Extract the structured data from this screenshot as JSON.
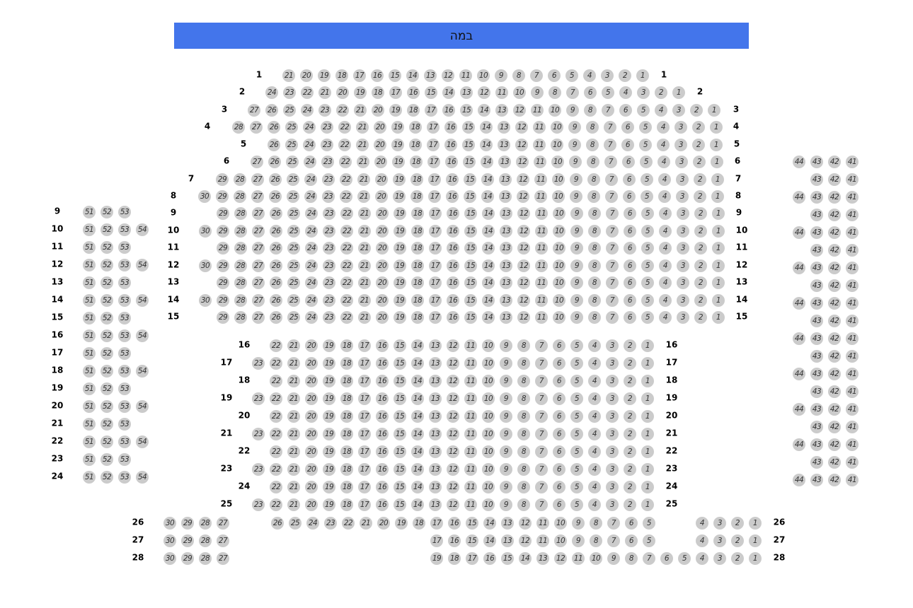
{
  "stage": {
    "label": "במה",
    "color": "#4375eb"
  },
  "seat_color": "#cbcbcb",
  "sections": {
    "main_upper": [
      {
        "row": "1",
        "blocks": [
          [
            21,
            1
          ]
        ]
      },
      {
        "row": "2",
        "blocks": [
          [
            24,
            1
          ]
        ]
      },
      {
        "row": "3",
        "blocks": [
          [
            27,
            1
          ]
        ]
      },
      {
        "row": "4",
        "blocks": [
          [
            28,
            1
          ]
        ]
      },
      {
        "row": "5",
        "blocks": [
          [
            26,
            1
          ]
        ]
      },
      {
        "row": "6",
        "blocks": [
          [
            27,
            1
          ]
        ]
      },
      {
        "row": "7",
        "blocks": [
          [
            29,
            1
          ]
        ]
      },
      {
        "row": "8",
        "blocks": [
          [
            30,
            1
          ]
        ]
      },
      {
        "row": "9",
        "blocks": [
          [
            29,
            1
          ]
        ]
      },
      {
        "row": "10",
        "blocks": [
          [
            30,
            1
          ]
        ]
      },
      {
        "row": "11",
        "blocks": [
          [
            29,
            1
          ]
        ]
      },
      {
        "row": "12",
        "blocks": [
          [
            30,
            1
          ]
        ]
      },
      {
        "row": "13",
        "blocks": [
          [
            29,
            1
          ]
        ]
      },
      {
        "row": "14",
        "blocks": [
          [
            30,
            1
          ]
        ]
      },
      {
        "row": "15",
        "blocks": [
          [
            29,
            1
          ]
        ]
      }
    ],
    "main_lower": [
      {
        "row": "16",
        "blocks": [
          [
            22,
            1
          ]
        ]
      },
      {
        "row": "17",
        "blocks": [
          [
            23,
            1
          ]
        ]
      },
      {
        "row": "18",
        "blocks": [
          [
            22,
            1
          ]
        ]
      },
      {
        "row": "19",
        "blocks": [
          [
            23,
            1
          ]
        ]
      },
      {
        "row": "20",
        "blocks": [
          [
            22,
            1
          ]
        ]
      },
      {
        "row": "21",
        "blocks": [
          [
            23,
            1
          ]
        ]
      },
      {
        "row": "22",
        "blocks": [
          [
            22,
            1
          ]
        ]
      },
      {
        "row": "23",
        "blocks": [
          [
            23,
            1
          ]
        ]
      },
      {
        "row": "24",
        "blocks": [
          [
            22,
            1
          ]
        ]
      },
      {
        "row": "25",
        "blocks": [
          [
            23,
            1
          ]
        ]
      }
    ],
    "rear": [
      {
        "row": "26",
        "blocks": [
          [
            30,
            27
          ],
          [
            26,
            5
          ],
          [
            4,
            1
          ]
        ]
      },
      {
        "row": "27",
        "blocks": [
          [
            30,
            27
          ],
          [
            17,
            5
          ],
          [
            4,
            1
          ]
        ]
      },
      {
        "row": "28",
        "blocks": [
          [
            30,
            27
          ],
          [
            19,
            1
          ]
        ]
      }
    ],
    "left_wing": [
      {
        "row": "9",
        "seats": [
          51,
          52,
          53
        ]
      },
      {
        "row": "10",
        "seats": [
          51,
          52,
          53,
          54
        ]
      },
      {
        "row": "11",
        "seats": [
          51,
          52,
          53
        ]
      },
      {
        "row": "12",
        "seats": [
          51,
          52,
          53,
          54
        ]
      },
      {
        "row": "13",
        "seats": [
          51,
          52,
          53
        ]
      },
      {
        "row": "14",
        "seats": [
          51,
          52,
          53,
          54
        ]
      },
      {
        "row": "15",
        "seats": [
          51,
          52,
          53
        ]
      },
      {
        "row": "16",
        "seats": [
          51,
          52,
          53,
          54
        ]
      },
      {
        "row": "17",
        "seats": [
          51,
          52,
          53
        ]
      },
      {
        "row": "18",
        "seats": [
          51,
          52,
          53,
          54
        ]
      },
      {
        "row": "19",
        "seats": [
          51,
          52,
          53
        ]
      },
      {
        "row": "20",
        "seats": [
          51,
          52,
          53,
          54
        ]
      },
      {
        "row": "21",
        "seats": [
          51,
          52,
          53
        ]
      },
      {
        "row": "22",
        "seats": [
          51,
          52,
          53,
          54
        ]
      },
      {
        "row": "23",
        "seats": [
          51,
          52,
          53
        ]
      },
      {
        "row": "24",
        "seats": [
          51,
          52,
          53,
          54
        ]
      }
    ],
    "right_wing": [
      {
        "seats": [
          44,
          43,
          42,
          41
        ]
      },
      {
        "seats": [
          43,
          42,
          41
        ]
      },
      {
        "seats": [
          44,
          43,
          42,
          41
        ]
      },
      {
        "seats": [
          43,
          42,
          41
        ]
      },
      {
        "seats": [
          44,
          43,
          42,
          41
        ]
      },
      {
        "seats": [
          43,
          42,
          41
        ]
      },
      {
        "seats": [
          44,
          43,
          42,
          41
        ]
      },
      {
        "seats": [
          43,
          42,
          41
        ]
      },
      {
        "seats": [
          44,
          43,
          42,
          41
        ]
      },
      {
        "seats": [
          43,
          42,
          41
        ]
      },
      {
        "seats": [
          44,
          43,
          42,
          41
        ]
      },
      {
        "seats": [
          43,
          42,
          41
        ]
      },
      {
        "seats": [
          44,
          43,
          42,
          41
        ]
      },
      {
        "seats": [
          43,
          42,
          41
        ]
      },
      {
        "seats": [
          44,
          43,
          42,
          41
        ]
      },
      {
        "seats": [
          43,
          42,
          41
        ]
      },
      {
        "seats": [
          44,
          43,
          42,
          41
        ]
      },
      {
        "seats": [
          43,
          42,
          41
        ]
      },
      {
        "seats": [
          44,
          43,
          42,
          41
        ]
      }
    ]
  }
}
